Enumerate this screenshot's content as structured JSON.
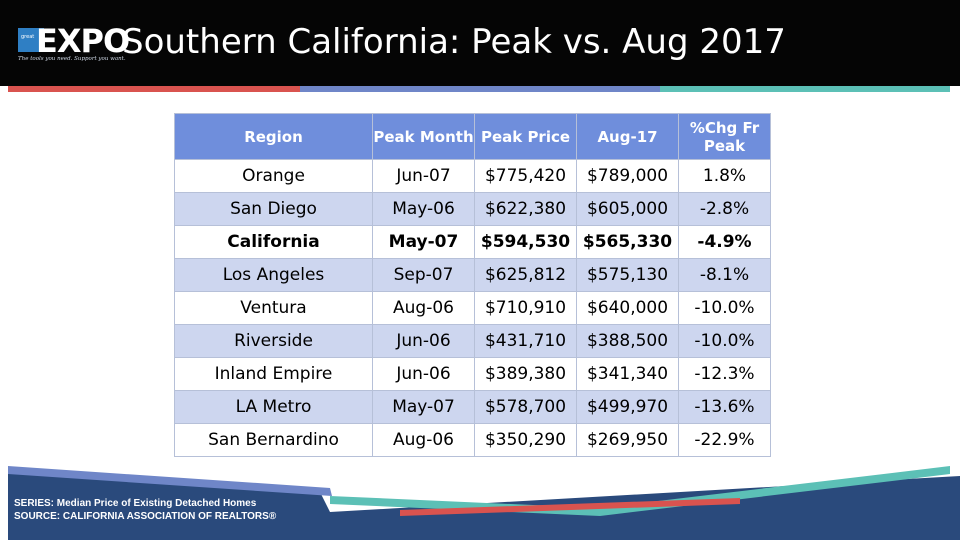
{
  "logo": {
    "badge_text": "great",
    "text": "EXPO",
    "tagline": "The tools you need. Support you want."
  },
  "title": "Southern California: Peak vs. Aug 2017",
  "table": {
    "headers": [
      "Region",
      "Peak Month",
      "Peak Price",
      "Aug-17",
      "%Chg Fr Peak"
    ],
    "rows": [
      [
        "Orange",
        "Jun-07",
        "$775,420",
        "$789,000",
        "1.8%"
      ],
      [
        "San Diego",
        "May-06",
        "$622,380",
        "$605,000",
        "-2.8%"
      ],
      [
        "California",
        "May-07",
        "$594,530",
        "$565,330",
        "-4.9%"
      ],
      [
        "Los Angeles",
        "Sep-07",
        "$625,812",
        "$575,130",
        "-8.1%"
      ],
      [
        "Ventura",
        "Aug-06",
        "$710,910",
        "$640,000",
        "-10.0%"
      ],
      [
        "Riverside",
        "Jun-06",
        "$431,710",
        "$388,500",
        "-10.0%"
      ],
      [
        "Inland Empire",
        "Jun-06",
        "$389,380",
        "$341,340",
        "-12.3%"
      ],
      [
        "LA Metro",
        "May-07",
        "$578,700",
        "$499,970",
        "-13.6%"
      ],
      [
        "San Bernardino",
        "Aug-06",
        "$350,290",
        "$269,950",
        "-22.9%"
      ]
    ]
  },
  "footer": {
    "series": "SERIES: Median Price of Existing Detached Homes",
    "source": "SOURCE:  CALIFORNIA ASSOCIATION OF REALTORS®"
  },
  "colors": {
    "header_bg": "#050505",
    "table_header": "#6f8edc",
    "row_alt": "#cdd6ef",
    "accent_red": "#d9534f",
    "accent_blue": "#6f86c8",
    "accent_teal": "#5cc0b6",
    "footer_navy": "#2a4a7c"
  }
}
